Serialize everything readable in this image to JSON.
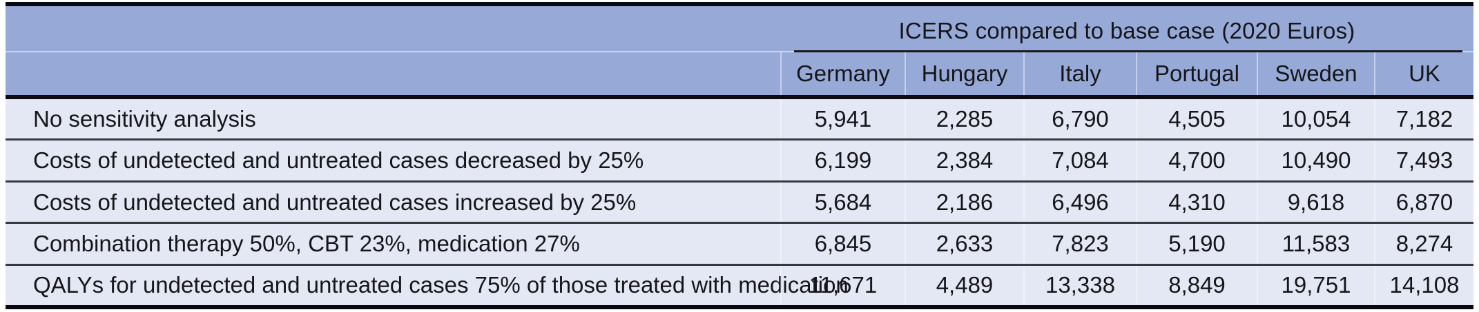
{
  "table": {
    "span_header": "ICERS compared to base case (2020 Euros)",
    "columns": [
      "Germany",
      "Hungary",
      "Italy",
      "Portugal",
      "Sweden",
      "UK"
    ],
    "rows": [
      {
        "label": "No sensitivity analysis",
        "values": [
          "5,941",
          "2,285",
          "6,790",
          "4,505",
          "10,054",
          "7,182"
        ]
      },
      {
        "label": "Costs of undetected and untreated cases decreased by 25%",
        "values": [
          "6,199",
          "2,384",
          "7,084",
          "4,700",
          "10,490",
          "7,493"
        ]
      },
      {
        "label": "Costs of undetected and untreated cases increased by 25%",
        "values": [
          "5,684",
          "2,186",
          "6,496",
          "4,310",
          "9,618",
          "6,870"
        ]
      },
      {
        "label": "Combination therapy 50%, CBT 23%, medication 27%",
        "values": [
          "6,845",
          "2,633",
          "7,823",
          "5,190",
          "11,583",
          "8,274"
        ]
      },
      {
        "label": "QALYs for undetected and untreated cases 75% of those treated with medication",
        "values": [
          "11,671",
          "4,489",
          "13,338",
          "8,849",
          "19,751",
          "14,108"
        ]
      }
    ],
    "colors": {
      "header_bg": "#97aad7",
      "body_bg": "#e3e8f4",
      "rule_black": "#0a0a0e",
      "row_divider": "#383840"
    }
  }
}
